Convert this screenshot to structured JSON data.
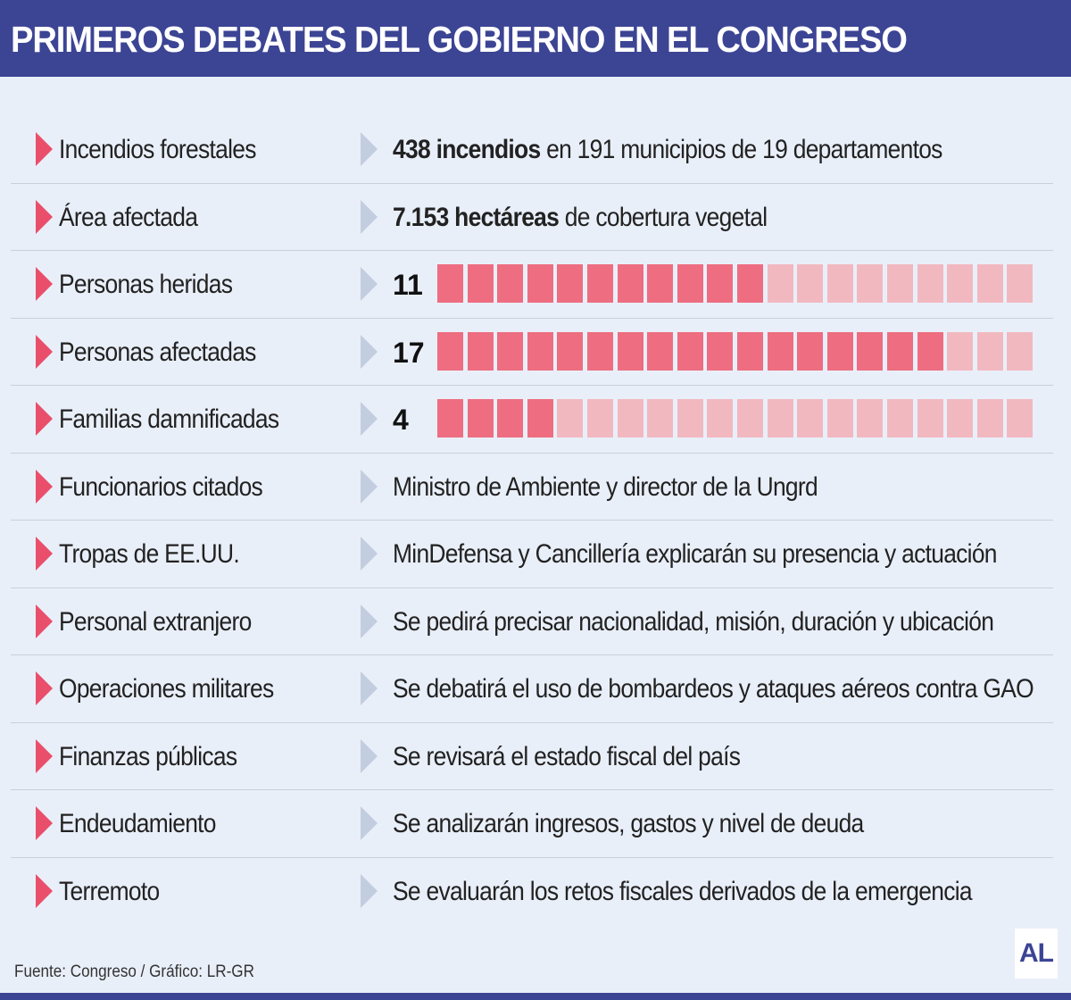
{
  "header": {
    "title": "PRIMEROS DEBATES DEL GOBIERNO EN EL CONGRESO"
  },
  "colors": {
    "header_bg": "#3c4494",
    "accent_red": "#e94f6b",
    "square_filled": "#ee6d80",
    "square_empty": "#f2b8c0",
    "background": "#e9eff9"
  },
  "rows": [
    {
      "label": "Incendios forestales",
      "type": "text",
      "bold": "438 incendios",
      "rest": " en 191 municipios de 19 departamentos"
    },
    {
      "label": "Área afectada",
      "type": "text",
      "bold": "7.153 hectáreas",
      "rest": " de cobertura vegetal"
    },
    {
      "label": "Personas heridas",
      "type": "squares",
      "number": "11",
      "filled": 11,
      "total": 20
    },
    {
      "label": "Personas afectadas",
      "type": "squares",
      "number": "17",
      "filled": 17,
      "total": 20
    },
    {
      "label": "Familias damnificadas",
      "type": "squares",
      "number": "4",
      "filled": 4,
      "total": 20
    },
    {
      "label": "Funcionarios citados",
      "type": "text",
      "bold": "",
      "rest": "Ministro de Ambiente y director de la Ungrd"
    },
    {
      "label": "Tropas de EE.UU.",
      "type": "text",
      "bold": "",
      "rest": "MinDefensa y Cancillería explicarán su presencia y actuación"
    },
    {
      "label": "Personal extranjero",
      "type": "text",
      "bold": "",
      "rest": "Se pedirá precisar nacionalidad, misión, duración y ubicación"
    },
    {
      "label": "Operaciones militares",
      "type": "text",
      "bold": "",
      "rest": "Se debatirá el uso de bombardeos y ataques aéreos contra GAO"
    },
    {
      "label": "Finanzas públicas",
      "type": "text",
      "bold": "",
      "rest": "Se revisará el estado fiscal del país"
    },
    {
      "label": "Endeudamiento",
      "type": "text",
      "bold": "",
      "rest": "Se analizarán ingresos, gastos y nivel de deuda"
    },
    {
      "label": "Terremoto",
      "type": "text",
      "bold": "",
      "rest": "Se evaluarán los retos fiscales derivados de la emergencia"
    }
  ],
  "footer": {
    "source": "Fuente: Congreso / Gráfico: LR-GR",
    "logo": "AL"
  }
}
